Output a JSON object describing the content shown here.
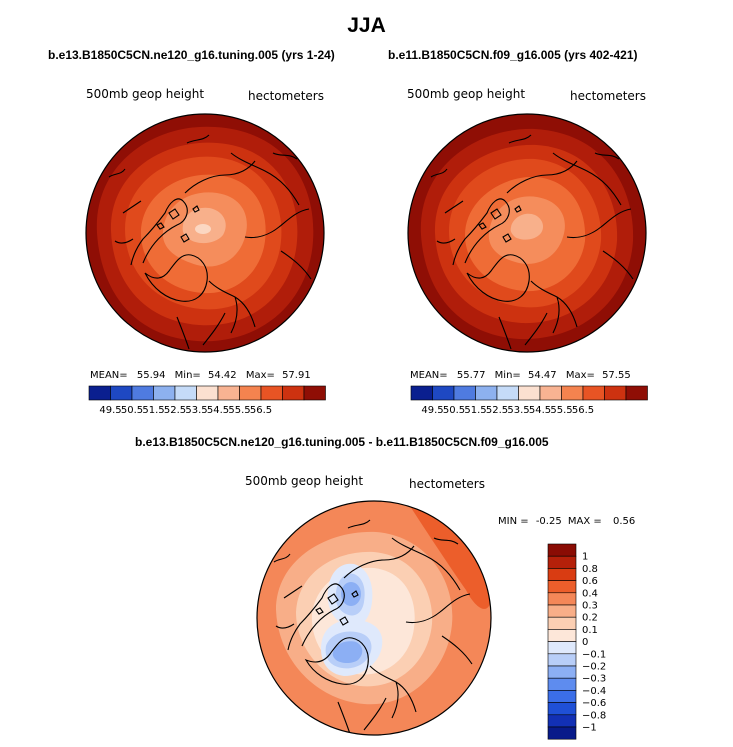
{
  "main_title": "JJA",
  "panels": [
    {
      "title": "b.e13.B1850C5CN.ne120_g16.tuning.005 (yrs 1-24)",
      "left_label": "500mb geop height",
      "right_label": "hectometers",
      "stats": {
        "mean_label": "MEAN=",
        "mean": "55.94",
        "min_label": "Min=",
        "min": "54.42",
        "max_label": "Max=",
        "max": "57.91"
      }
    },
    {
      "title": "b.e11.B1850C5CN.f09_g16.005 (yrs 402-421)",
      "left_label": "500mb geop height",
      "right_label": "hectometers",
      "stats": {
        "mean_label": "MEAN=",
        "mean": "55.77",
        "min_label": "Min=",
        "min": "54.47",
        "max_label": "Max=",
        "max": "57.55"
      }
    },
    {
      "title": "b.e13.B1850C5CN.ne120_g16.tuning.005 - b.e11.B1850C5CN.f09_g16.005",
      "left_label": "500mb geop height",
      "right_label": "hectometers",
      "stats": {
        "min_label": "MIN =",
        "min": "-0.25",
        "max_label": "MAX =",
        "max": "0.56"
      }
    }
  ],
  "colors": {
    "h_scale": [
      "#0a1f8f",
      "#1e48c2",
      "#4f7be0",
      "#8db1ef",
      "#c5dbf8",
      "#fbe0d0",
      "#f8b392",
      "#f4834f",
      "#e85424",
      "#cd3210",
      "#8f0e05"
    ],
    "diff_scale": [
      "#081a8a",
      "#1230b5",
      "#1f50d6",
      "#3b6ee8",
      "#5e8cef",
      "#8caff4",
      "#b8cef8",
      "#dfe9fc",
      "#fde7d9",
      "#fbcfb3",
      "#f8ae88",
      "#f48758",
      "#ec5e2b",
      "#d93c12",
      "#b5200a",
      "#8a0c04"
    ]
  },
  "chart_data": [
    {
      "type": "heatmap",
      "projection": "polar stereographic (Northern Hemisphere)",
      "title": "b.e13.B1850C5CN.ne120_g16.tuning.005 (yrs 1-24)",
      "field": "500mb geop height",
      "units": "hectometers",
      "mean": 55.94,
      "min": 54.42,
      "max": 57.91,
      "contour_levels": [
        49.5,
        50.5,
        51.5,
        52.5,
        53.5,
        54.5,
        55.5,
        56.5
      ],
      "colorbar_labels": [
        "49.5",
        "50.5",
        "51.5",
        "52.5",
        "53.5",
        "54.5",
        "55.5",
        "56.5"
      ],
      "legend_position": "bottom"
    },
    {
      "type": "heatmap",
      "projection": "polar stereographic (Northern Hemisphere)",
      "title": "b.e11.B1850C5CN.f09_g16.005 (yrs 402-421)",
      "field": "500mb geop height",
      "units": "hectometers",
      "mean": 55.77,
      "min": 54.47,
      "max": 57.55,
      "contour_levels": [
        49.5,
        50.5,
        51.5,
        52.5,
        53.5,
        54.5,
        55.5,
        56.5
      ],
      "colorbar_labels": [
        "49.5",
        "50.5",
        "51.5",
        "52.5",
        "53.5",
        "54.5",
        "55.5",
        "56.5"
      ],
      "legend_position": "bottom"
    },
    {
      "type": "heatmap",
      "projection": "polar stereographic (Northern Hemisphere)",
      "title": "b.e13.B1850C5CN.ne120_g16.tuning.005 - b.e11.B1850C5CN.f09_g16.005",
      "field": "500mb geop height",
      "units": "hectometers",
      "min": -0.25,
      "max": 0.56,
      "contour_levels": [
        -1,
        -0.8,
        -0.6,
        -0.4,
        -0.3,
        -0.2,
        -0.1,
        0,
        0.1,
        0.2,
        0.3,
        0.4,
        0.6,
        0.8,
        1
      ],
      "colorbar_labels": [
        "1",
        "0.8",
        "0.6",
        "0.4",
        "0.3",
        "0.2",
        "0.1",
        "0",
        "−0.1",
        "−0.2",
        "−0.3",
        "−0.4",
        "−0.6",
        "−0.8",
        "−1"
      ],
      "legend_position": "right"
    }
  ]
}
